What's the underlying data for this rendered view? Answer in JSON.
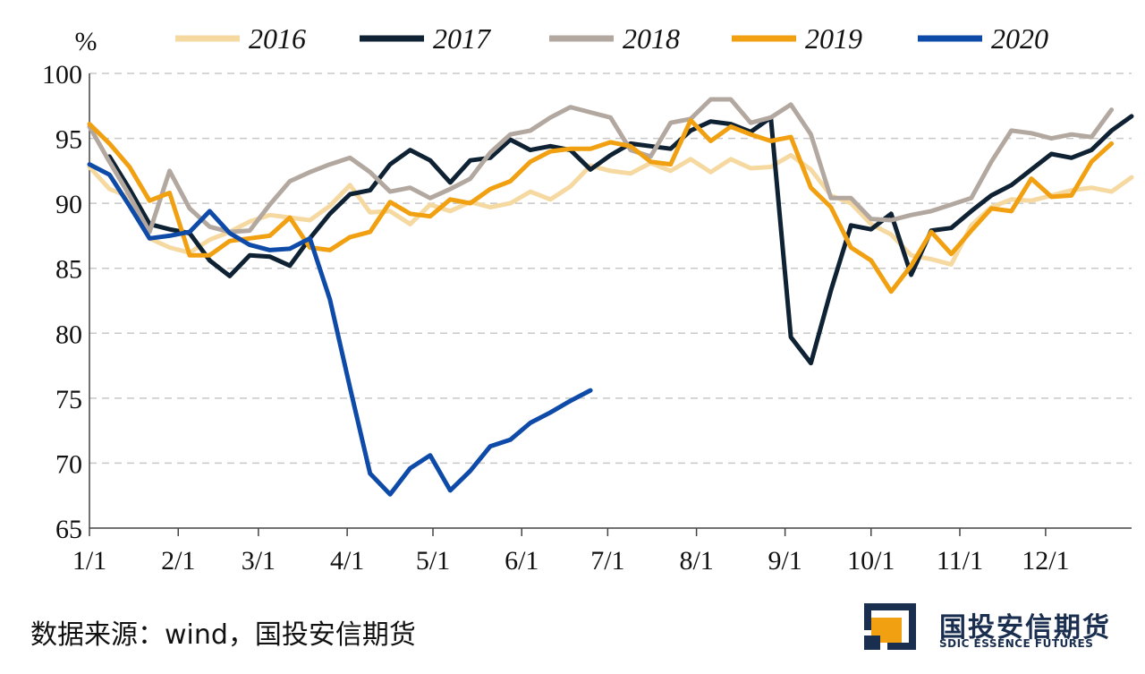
{
  "chart_data": {
    "type": "line",
    "unit_label": "%",
    "ylim": [
      65,
      100
    ],
    "yticks": [
      65,
      70,
      75,
      80,
      85,
      90,
      95,
      100
    ],
    "x_domain": [
      0,
      52
    ],
    "x_ticks": [
      {
        "label": "1/1",
        "week": 0
      },
      {
        "label": "2/1",
        "week": 4.43
      },
      {
        "label": "3/1",
        "week": 8.43
      },
      {
        "label": "4/1",
        "week": 12.86
      },
      {
        "label": "5/1",
        "week": 17.14
      },
      {
        "label": "6/1",
        "week": 21.57
      },
      {
        "label": "7/1",
        "week": 25.86
      },
      {
        "label": "8/1",
        "week": 30.29
      },
      {
        "label": "9/1",
        "week": 34.71
      },
      {
        "label": "10/1",
        "week": 39
      },
      {
        "label": "11/1",
        "week": 43.43
      },
      {
        "label": "12/1",
        "week": 47.71
      }
    ],
    "grid": "horizontal-dashed",
    "legend_position": "top",
    "series": [
      {
        "name": "2016",
        "color": "#f5d9a0",
        "points": [
          [
            0,
            92.8
          ],
          [
            1,
            91.1
          ],
          [
            2,
            90.5
          ],
          [
            3,
            87.3
          ],
          [
            4,
            86.6
          ],
          [
            5,
            86.2
          ],
          [
            6,
            87.2
          ],
          [
            7,
            87.8
          ],
          [
            8,
            88.6
          ],
          [
            9,
            89.1
          ],
          [
            10,
            88.9
          ],
          [
            11,
            88.7
          ],
          [
            12,
            89.8
          ],
          [
            13,
            91.4
          ],
          [
            14,
            89.3
          ],
          [
            15,
            89.4
          ],
          [
            16,
            88.4
          ],
          [
            17,
            89.9
          ],
          [
            18,
            89.4
          ],
          [
            19,
            90.1
          ],
          [
            20,
            89.7
          ],
          [
            21,
            90.0
          ],
          [
            22,
            90.9
          ],
          [
            23,
            90.3
          ],
          [
            24,
            91.3
          ],
          [
            25,
            92.9
          ],
          [
            26,
            92.5
          ],
          [
            27,
            92.3
          ],
          [
            28,
            93.1
          ],
          [
            29,
            92.5
          ],
          [
            30,
            93.4
          ],
          [
            31,
            92.4
          ],
          [
            32,
            93.4
          ],
          [
            33,
            92.7
          ],
          [
            34,
            92.8
          ],
          [
            35,
            93.7
          ],
          [
            36,
            92.6
          ],
          [
            37,
            90.6
          ],
          [
            38,
            90.0
          ],
          [
            39,
            88.4
          ],
          [
            40,
            87.6
          ],
          [
            41,
            86.0
          ],
          [
            42,
            85.7
          ],
          [
            43,
            85.3
          ],
          [
            44,
            88.3
          ],
          [
            45,
            89.7
          ],
          [
            46,
            90.3
          ],
          [
            47,
            90.2
          ],
          [
            48,
            90.6
          ],
          [
            49,
            91.0
          ],
          [
            50,
            91.2
          ],
          [
            51,
            90.9
          ],
          [
            52,
            92.0
          ]
        ]
      },
      {
        "name": "2017",
        "color": "#0f2233",
        "points": [
          [
            1,
            93.6
          ],
          [
            2,
            91.1
          ],
          [
            3,
            88.4
          ],
          [
            4,
            88.0
          ],
          [
            5,
            87.7
          ],
          [
            6,
            85.6
          ],
          [
            7,
            84.4
          ],
          [
            8,
            86.0
          ],
          [
            9,
            85.9
          ],
          [
            10,
            85.2
          ],
          [
            11,
            87.3
          ],
          [
            12,
            89.2
          ],
          [
            13,
            90.7
          ],
          [
            14,
            91.0
          ],
          [
            15,
            93.0
          ],
          [
            16,
            94.1
          ],
          [
            17,
            93.3
          ],
          [
            18,
            91.6
          ],
          [
            19,
            93.3
          ],
          [
            20,
            93.5
          ],
          [
            21,
            94.9
          ],
          [
            22,
            94.1
          ],
          [
            23,
            94.4
          ],
          [
            24,
            94.1
          ],
          [
            25,
            92.6
          ],
          [
            26,
            93.7
          ],
          [
            27,
            94.6
          ],
          [
            28,
            94.4
          ],
          [
            29,
            94.2
          ],
          [
            30,
            95.6
          ],
          [
            31,
            96.3
          ],
          [
            32,
            96.1
          ],
          [
            33,
            95.5
          ],
          [
            34,
            96.6
          ],
          [
            35,
            79.7
          ],
          [
            36,
            77.7
          ],
          [
            37,
            83.3
          ],
          [
            38,
            88.3
          ],
          [
            39,
            88.0
          ],
          [
            40,
            89.2
          ],
          [
            41,
            84.5
          ],
          [
            42,
            87.9
          ],
          [
            43,
            88.1
          ],
          [
            44,
            89.4
          ],
          [
            45,
            90.6
          ],
          [
            46,
            91.4
          ],
          [
            47,
            92.6
          ],
          [
            48,
            93.8
          ],
          [
            49,
            93.5
          ],
          [
            50,
            94.1
          ],
          [
            51,
            95.6
          ],
          [
            52,
            96.7
          ]
        ]
      },
      {
        "name": "2018",
        "color": "#b3a8a0",
        "points": [
          [
            0,
            95.9
          ],
          [
            1,
            93.2
          ],
          [
            2,
            90.6
          ],
          [
            3,
            87.8
          ],
          [
            4,
            92.5
          ],
          [
            5,
            89.6
          ],
          [
            6,
            88.2
          ],
          [
            7,
            87.8
          ],
          [
            8,
            87.9
          ],
          [
            9,
            89.9
          ],
          [
            10,
            91.7
          ],
          [
            11,
            92.4
          ],
          [
            12,
            93.0
          ],
          [
            13,
            93.5
          ],
          [
            14,
            92.4
          ],
          [
            15,
            90.9
          ],
          [
            16,
            91.2
          ],
          [
            17,
            90.4
          ],
          [
            18,
            91.1
          ],
          [
            19,
            91.9
          ],
          [
            20,
            93.9
          ],
          [
            21,
            95.3
          ],
          [
            22,
            95.6
          ],
          [
            23,
            96.6
          ],
          [
            24,
            97.4
          ],
          [
            25,
            97.0
          ],
          [
            26,
            96.6
          ],
          [
            27,
            94.1
          ],
          [
            28,
            93.6
          ],
          [
            29,
            96.2
          ],
          [
            30,
            96.5
          ],
          [
            31,
            98.0
          ],
          [
            32,
            98.0
          ],
          [
            33,
            96.2
          ],
          [
            34,
            96.6
          ],
          [
            35,
            97.6
          ],
          [
            36,
            95.3
          ],
          [
            37,
            90.4
          ],
          [
            38,
            90.4
          ],
          [
            39,
            88.8
          ],
          [
            40,
            88.7
          ],
          [
            41,
            89.1
          ],
          [
            42,
            89.4
          ],
          [
            43,
            89.9
          ],
          [
            44,
            90.4
          ],
          [
            45,
            93.2
          ],
          [
            46,
            95.6
          ],
          [
            47,
            95.4
          ],
          [
            48,
            95.0
          ],
          [
            49,
            95.3
          ],
          [
            50,
            95.1
          ],
          [
            51,
            97.2
          ]
        ]
      },
      {
        "name": "2019",
        "color": "#f0a010",
        "points": [
          [
            0,
            96.1
          ],
          [
            1,
            94.6
          ],
          [
            2,
            92.8
          ],
          [
            3,
            90.2
          ],
          [
            4,
            90.8
          ],
          [
            5,
            86.0
          ],
          [
            6,
            86.0
          ],
          [
            7,
            87.1
          ],
          [
            8,
            87.3
          ],
          [
            9,
            87.5
          ],
          [
            10,
            88.9
          ],
          [
            11,
            86.6
          ],
          [
            12,
            86.4
          ],
          [
            13,
            87.4
          ],
          [
            14,
            87.8
          ],
          [
            15,
            90.1
          ],
          [
            16,
            89.2
          ],
          [
            17,
            89.0
          ],
          [
            18,
            90.3
          ],
          [
            19,
            90.0
          ],
          [
            20,
            91.1
          ],
          [
            21,
            91.7
          ],
          [
            22,
            93.2
          ],
          [
            23,
            94.0
          ],
          [
            24,
            94.2
          ],
          [
            25,
            94.2
          ],
          [
            26,
            94.7
          ],
          [
            27,
            94.4
          ],
          [
            28,
            93.2
          ],
          [
            29,
            93.0
          ],
          [
            30,
            96.4
          ],
          [
            31,
            94.8
          ],
          [
            32,
            95.9
          ],
          [
            33,
            95.3
          ],
          [
            34,
            94.8
          ],
          [
            35,
            95.1
          ],
          [
            36,
            91.2
          ],
          [
            37,
            89.7
          ],
          [
            38,
            86.6
          ],
          [
            39,
            85.6
          ],
          [
            40,
            83.2
          ],
          [
            41,
            85.2
          ],
          [
            42,
            87.8
          ],
          [
            43,
            86.1
          ],
          [
            44,
            87.9
          ],
          [
            45,
            89.6
          ],
          [
            46,
            89.4
          ],
          [
            47,
            91.9
          ],
          [
            48,
            90.5
          ],
          [
            49,
            90.6
          ],
          [
            50,
            93.2
          ],
          [
            51,
            94.6
          ]
        ]
      },
      {
        "name": "2020",
        "color": "#0e4aa8",
        "points": [
          [
            0,
            93.0
          ],
          [
            1,
            92.2
          ],
          [
            2,
            89.8
          ],
          [
            3,
            87.3
          ],
          [
            4,
            87.5
          ],
          [
            5,
            87.8
          ],
          [
            6,
            89.4
          ],
          [
            7,
            87.7
          ],
          [
            8,
            86.8
          ],
          [
            9,
            86.4
          ],
          [
            10,
            86.5
          ],
          [
            11,
            87.3
          ],
          [
            12,
            82.6
          ],
          [
            13,
            75.8
          ],
          [
            14,
            69.2
          ],
          [
            15,
            67.6
          ],
          [
            16,
            69.6
          ],
          [
            17,
            70.6
          ],
          [
            18,
            67.9
          ],
          [
            19,
            69.4
          ],
          [
            20,
            71.3
          ],
          [
            21,
            71.8
          ],
          [
            22,
            73.1
          ],
          [
            23,
            73.9
          ],
          [
            24,
            74.8
          ],
          [
            25,
            75.6
          ]
        ]
      }
    ]
  },
  "source": "数据来源：wind，国投安信期货",
  "logo": {
    "cn": "国投安信期货",
    "en": "SDIC ESSENCE FUTURES"
  }
}
